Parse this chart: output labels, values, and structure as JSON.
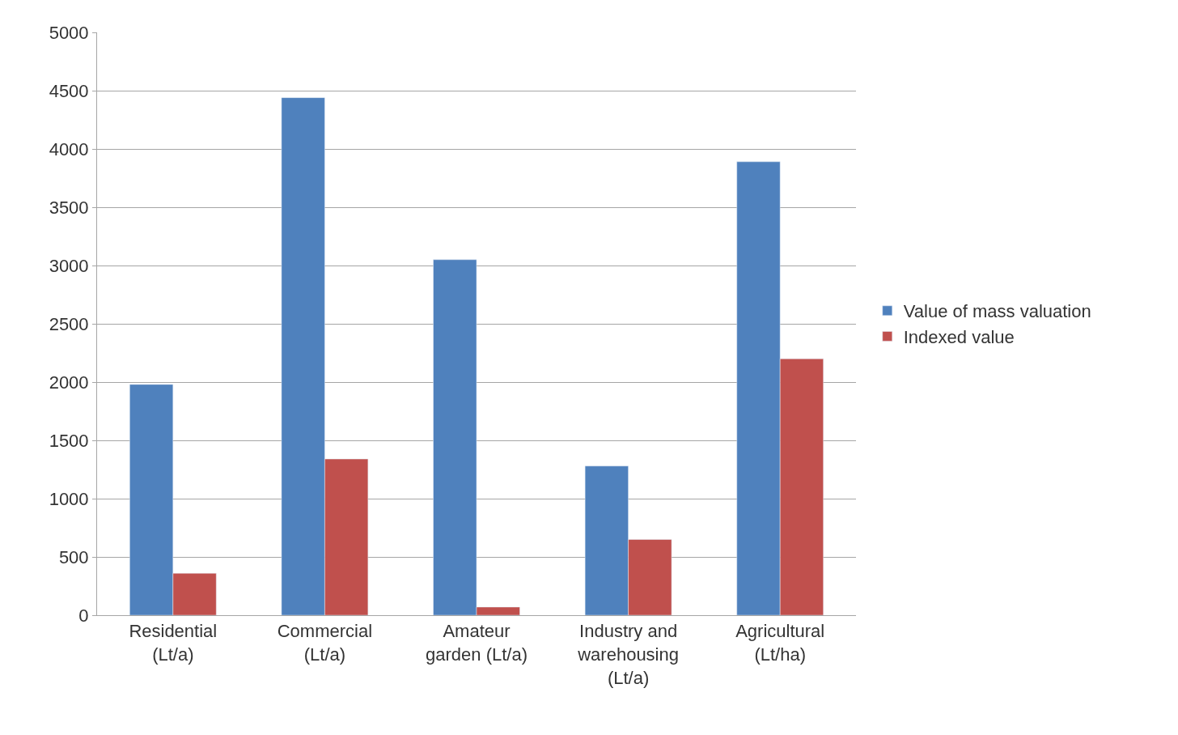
{
  "chart_data": {
    "type": "bar",
    "categories": [
      "Residential (Lt/a)",
      "Commercial (Lt/a)",
      "Amateur garden (Lt/a)",
      "Industry and warehousing (Lt/a)",
      "Agricultural (Lt/ha)"
    ],
    "series": [
      {
        "name": "Value of mass valuation",
        "color": "#4f81bd",
        "values": [
          1980,
          4440,
          3050,
          1280,
          3890
        ]
      },
      {
        "name": "Indexed value",
        "color": "#c0504d",
        "values": [
          360,
          1340,
          70,
          650,
          2200
        ]
      }
    ],
    "ylim": [
      0,
      5000
    ],
    "yticks": [
      0,
      500,
      1000,
      1500,
      2000,
      2500,
      3000,
      3500,
      4000,
      4500,
      5000
    ],
    "grid": "y",
    "legend": "right"
  }
}
